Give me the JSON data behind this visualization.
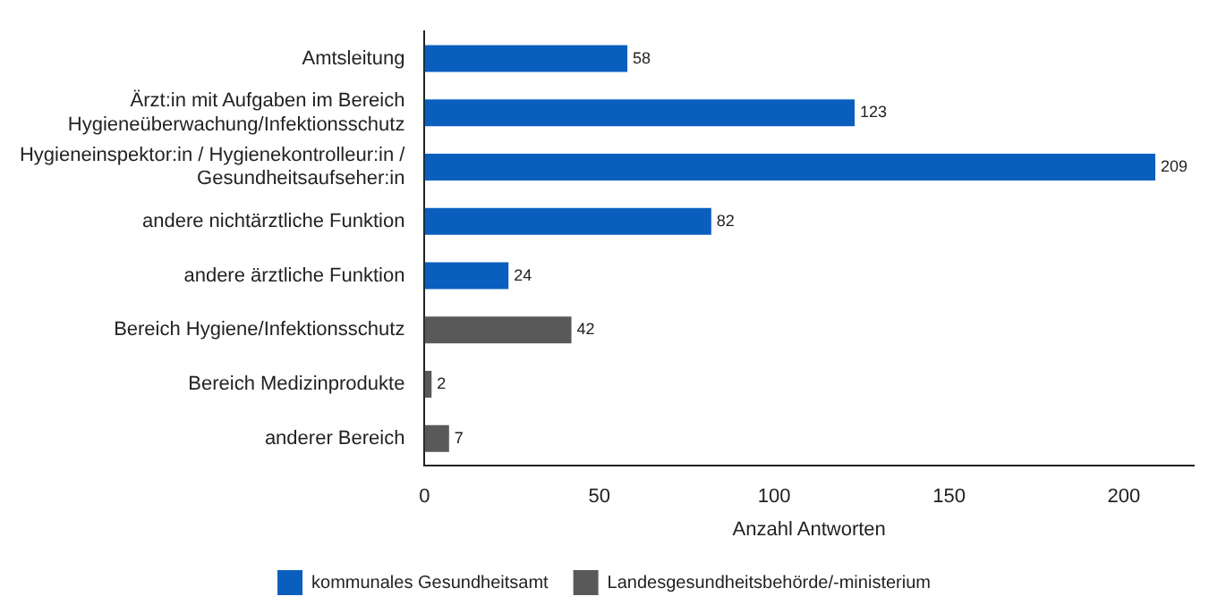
{
  "chart_data": {
    "type": "bar",
    "orientation": "horizontal",
    "xlabel": "Anzahl Antworten",
    "categories": [
      "Amtsleitung",
      "Ärzt:in mit Aufgaben im Bereich Hygieneüberwachung/Infektionsschutz",
      "Hygieneinspektor:in / Hygienekontrolleur:in / Gesundheitsaufseher:in",
      "andere nichtärztliche Funktion",
      "andere ärztliche Funktion",
      "Bereich Hygiene/Infektionsschutz",
      "Bereich Medizinprodukte",
      "anderer Bereich"
    ],
    "series": [
      {
        "name": "kommunales Gesundheitsamt",
        "color": "#0a5fbe",
        "values": [
          58,
          123,
          209,
          82,
          24,
          null,
          null,
          null
        ]
      },
      {
        "name": "Landesgesundheitsbehörde/-ministerium",
        "color": "#595959",
        "values": [
          null,
          null,
          null,
          null,
          null,
          42,
          2,
          7
        ]
      }
    ],
    "xlim": [
      0,
      220
    ],
    "xticks": [
      0,
      50,
      100,
      150,
      200
    ],
    "grid": false,
    "legend": "bottom",
    "data_labels": true
  }
}
